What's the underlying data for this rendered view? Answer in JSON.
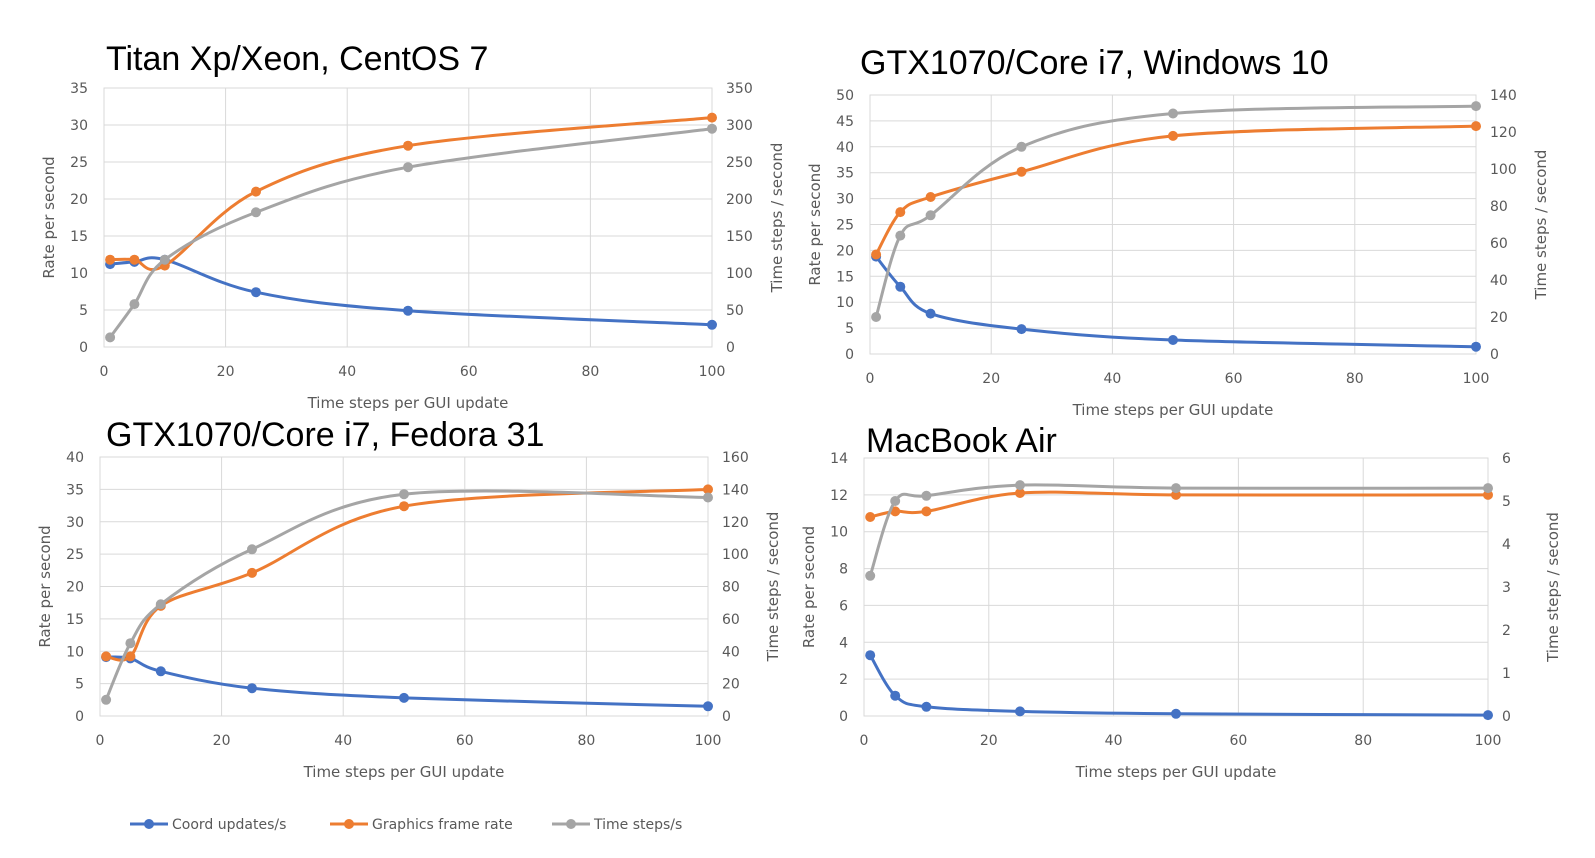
{
  "legend": [
    {
      "name": "Coord updates/s",
      "color": "#4472c4"
    },
    {
      "name": "Graphics frame rate",
      "color": "#ed7d31"
    },
    {
      "name": "Time steps/s",
      "color": "#a5a5a5"
    }
  ],
  "chart_data": [
    {
      "type": "line",
      "title": "Titan Xp/Xeon, CentOS 7",
      "xlabel": "Time steps per GUI update",
      "ylabel": "Rate per second",
      "y2label": "Time steps / second",
      "xlim": [
        0,
        100
      ],
      "xticks": [
        0,
        20,
        40,
        60,
        80,
        100
      ],
      "ylim": [
        0,
        35
      ],
      "yticks": [
        0,
        5,
        10,
        15,
        20,
        25,
        30,
        35
      ],
      "y2lim": [
        0,
        350
      ],
      "y2ticks": [
        0,
        50,
        100,
        150,
        200,
        250,
        300,
        350
      ],
      "grid": true,
      "series": [
        {
          "name": "Coord updates/s",
          "axis": "left",
          "color": "#4472c4",
          "x": [
            1,
            5,
            10,
            25,
            50,
            100
          ],
          "values": [
            11.2,
            11.5,
            11.8,
            7.4,
            4.9,
            3.0
          ]
        },
        {
          "name": "Graphics frame rate",
          "axis": "left",
          "color": "#ed7d31",
          "x": [
            1,
            5,
            10,
            25,
            50,
            100
          ],
          "values": [
            11.8,
            11.8,
            11.0,
            21.0,
            27.2,
            31.0
          ]
        },
        {
          "name": "Time steps/s",
          "axis": "right",
          "color": "#a5a5a5",
          "x": [
            1,
            5,
            10,
            25,
            50,
            100
          ],
          "values": [
            13,
            58,
            118,
            182,
            243,
            295
          ]
        }
      ]
    },
    {
      "type": "line",
      "title": "GTX1070/Core i7, Windows 10",
      "xlabel": "Time steps per GUI update",
      "ylabel": "Rate per second",
      "y2label": "Time steps / second",
      "xlim": [
        0,
        100
      ],
      "xticks": [
        0,
        20,
        40,
        60,
        80,
        100
      ],
      "ylim": [
        0,
        50
      ],
      "yticks": [
        0,
        5,
        10,
        15,
        20,
        25,
        30,
        35,
        40,
        45,
        50
      ],
      "y2lim": [
        0,
        140
      ],
      "y2ticks": [
        0,
        20,
        40,
        60,
        80,
        100,
        120,
        140
      ],
      "grid": true,
      "series": [
        {
          "name": "Coord updates/s",
          "axis": "left",
          "color": "#4472c4",
          "x": [
            1,
            5,
            10,
            25,
            50,
            100
          ],
          "values": [
            18.8,
            13.0,
            7.8,
            4.8,
            2.7,
            1.4
          ]
        },
        {
          "name": "Graphics frame rate",
          "axis": "left",
          "color": "#ed7d31",
          "x": [
            1,
            5,
            10,
            25,
            50,
            100
          ],
          "values": [
            19.2,
            27.4,
            30.3,
            35.2,
            42.1,
            44.0
          ]
        },
        {
          "name": "Time steps/s",
          "axis": "right",
          "color": "#a5a5a5",
          "x": [
            1,
            5,
            10,
            25,
            50,
            100
          ],
          "values": [
            20,
            64,
            75,
            112,
            130,
            134
          ]
        }
      ]
    },
    {
      "type": "line",
      "title": "GTX1070/Core i7, Fedora 31",
      "xlabel": "Time steps per GUI update",
      "ylabel": "Rate per second",
      "y2label": "Time steps / second",
      "xlim": [
        0,
        100
      ],
      "xticks": [
        0,
        20,
        40,
        60,
        80,
        100
      ],
      "ylim": [
        0,
        40
      ],
      "yticks": [
        0,
        5,
        10,
        15,
        20,
        25,
        30,
        35,
        40
      ],
      "y2lim": [
        0,
        160
      ],
      "y2ticks": [
        0,
        20,
        40,
        60,
        80,
        100,
        120,
        140,
        160
      ],
      "grid": true,
      "series": [
        {
          "name": "Coord updates/s",
          "axis": "left",
          "color": "#4472c4",
          "x": [
            1,
            5,
            10,
            25,
            50,
            100
          ],
          "values": [
            9.1,
            8.9,
            6.9,
            4.3,
            2.8,
            1.5
          ]
        },
        {
          "name": "Graphics frame rate",
          "axis": "left",
          "color": "#ed7d31",
          "x": [
            1,
            5,
            10,
            25,
            50,
            100
          ],
          "values": [
            9.2,
            9.2,
            17.0,
            22.1,
            32.4,
            35.0
          ]
        },
        {
          "name": "Time steps/s",
          "axis": "right",
          "color": "#a5a5a5",
          "x": [
            1,
            5,
            10,
            25,
            50,
            100
          ],
          "values": [
            10,
            45,
            69,
            103,
            137,
            135
          ]
        }
      ]
    },
    {
      "type": "line",
      "title": "MacBook Air",
      "xlabel": "Time steps per GUI update",
      "ylabel": "Rate per second",
      "y2label": "Time steps / second",
      "xlim": [
        0,
        100
      ],
      "xticks": [
        0,
        20,
        40,
        60,
        80,
        100
      ],
      "ylim": [
        0,
        14
      ],
      "yticks": [
        0,
        2,
        4,
        6,
        8,
        10,
        12,
        14
      ],
      "y2lim": [
        0,
        6
      ],
      "y2ticks": [
        0,
        1,
        2,
        3,
        4,
        5,
        6
      ],
      "grid": true,
      "series": [
        {
          "name": "Coord updates/s",
          "axis": "left",
          "color": "#4472c4",
          "x": [
            1,
            5,
            10,
            25,
            50,
            100
          ],
          "values": [
            3.3,
            1.1,
            0.5,
            0.25,
            0.12,
            0.05
          ]
        },
        {
          "name": "Graphics frame rate",
          "axis": "left",
          "color": "#ed7d31",
          "x": [
            1,
            5,
            10,
            25,
            50,
            100
          ],
          "values": [
            10.8,
            11.1,
            11.1,
            12.1,
            12.0,
            12.0
          ]
        },
        {
          "name": "Time steps/s",
          "axis": "right",
          "color": "#a5a5a5",
          "x": [
            1,
            5,
            10,
            25,
            50,
            100
          ],
          "values": [
            3.26,
            5.0,
            5.12,
            5.37,
            5.3,
            5.3
          ]
        }
      ]
    }
  ]
}
